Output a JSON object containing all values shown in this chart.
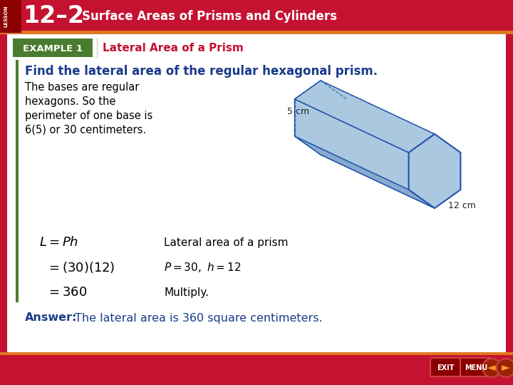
{
  "header_bg_color": "#C41230",
  "header_text": "Surface Areas of Prisms and Cylinders",
  "lesson_label": "12–2",
  "example_label": "EXAMPLE 1",
  "example_label_bg": "#4a7c2f",
  "example_title": "Lateral Area of a Prism",
  "example_title_color": "#C41230",
  "main_bg": "#ffffff",
  "outer_bg": "#C41230",
  "find_text": "Find the lateral area of the regular hexagonal prism.",
  "find_text_color": "#1a3a8a",
  "body_text_line1": "The bases are regular",
  "body_text_line2": "hexagons. So the",
  "body_text_line3": "perimeter of one base is",
  "body_text_line4": "6(5) or 30 centimeters.",
  "formula_line1_right": "Lateral area of a prism",
  "formula_line3_right": "Multiply.",
  "answer_label": "Answer:",
  "answer_text": "  The lateral area is 360 square centimeters.",
  "answer_color": "#1a3a8a",
  "dim_5cm": "5 cm",
  "dim_12cm": "12 cm",
  "prism_face_color": "#aac8e0",
  "prism_face_dark": "#88aacf",
  "prism_edge_color": "#2255aa",
  "bottom_nav_bg": "#C41230",
  "orange_accent": "#e07820"
}
